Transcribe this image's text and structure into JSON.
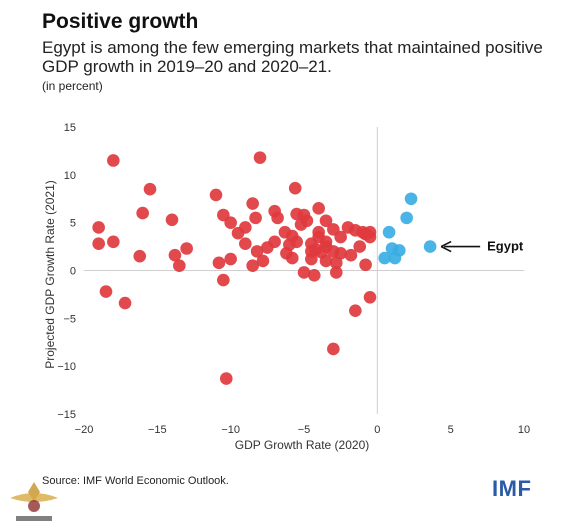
{
  "header": {
    "title": "Positive growth",
    "subtitle": "Egypt is among the few emerging markets that maintained positive GDP growth in 2019–20 and 2020–21.",
    "unit": "(in percent)"
  },
  "footer": {
    "source": "Source: IMF World Economic Outlook.",
    "brand": "IMF"
  },
  "colors": {
    "red": "#e0393e",
    "blue": "#3aaee3",
    "axis": "#cfcfcf",
    "text": "#333333"
  },
  "chart_data": {
    "type": "scatter",
    "xlabel": "GDP Growth Rate (2020)",
    "ylabel": "Projected GDP Growth Rate (2021)",
    "xlim": [
      -20,
      10
    ],
    "ylim": [
      -15,
      15
    ],
    "xticks": [
      "−20",
      "−15",
      "−10",
      "−5",
      "0",
      "5",
      "10"
    ],
    "yticks": [
      "15",
      "10",
      "5",
      "0",
      "−5",
      "−10",
      "−15"
    ],
    "annotation": {
      "label": "Egypt",
      "x": 3.6,
      "y": 2.5
    },
    "series": [
      {
        "color": "#e0393e",
        "points": [
          [
            -18.0,
            11.5
          ],
          [
            -15.5,
            8.5
          ],
          [
            -16.0,
            6.0
          ],
          [
            -19.0,
            4.5
          ],
          [
            -19.0,
            2.8
          ],
          [
            -18.0,
            3.0
          ],
          [
            -18.5,
            -2.2
          ],
          [
            -17.2,
            -3.4
          ],
          [
            -16.2,
            1.5
          ],
          [
            -13.8,
            1.6
          ],
          [
            -13.0,
            2.3
          ],
          [
            -13.5,
            0.5
          ],
          [
            -14.0,
            5.3
          ],
          [
            -11.0,
            7.9
          ],
          [
            -10.5,
            5.8
          ],
          [
            -10.0,
            5.0
          ],
          [
            -9.5,
            3.9
          ],
          [
            -9.0,
            4.5
          ],
          [
            -8.5,
            7.0
          ],
          [
            -8.0,
            11.8
          ],
          [
            -8.3,
            5.5
          ],
          [
            -10.8,
            0.8
          ],
          [
            -10.0,
            1.2
          ],
          [
            -10.5,
            -1.0
          ],
          [
            -10.3,
            -11.3
          ],
          [
            -9.0,
            2.8
          ],
          [
            -8.2,
            2.0
          ],
          [
            -7.5,
            2.4
          ],
          [
            -7.0,
            3.0
          ],
          [
            -8.5,
            0.5
          ],
          [
            -7.8,
            1.0
          ],
          [
            -7.0,
            6.2
          ],
          [
            -6.8,
            5.5
          ],
          [
            -6.3,
            4.0
          ],
          [
            -5.8,
            3.6
          ],
          [
            -6.0,
            2.7
          ],
          [
            -5.6,
            8.6
          ],
          [
            -5.5,
            5.9
          ],
          [
            -5.0,
            5.8
          ],
          [
            -5.2,
            4.8
          ],
          [
            -5.5,
            3.0
          ],
          [
            -6.2,
            1.8
          ],
          [
            -5.8,
            1.3
          ],
          [
            -4.8,
            5.2
          ],
          [
            -4.5,
            2.8
          ],
          [
            -4.2,
            2.2
          ],
          [
            -4.0,
            6.5
          ],
          [
            -4.0,
            3.5
          ],
          [
            -3.5,
            5.2
          ],
          [
            -3.0,
            4.3
          ],
          [
            -3.5,
            2.5
          ],
          [
            -3.0,
            2.0
          ],
          [
            -2.5,
            3.5
          ],
          [
            -2.0,
            4.5
          ],
          [
            -1.5,
            4.2
          ],
          [
            -1.8,
            1.6
          ],
          [
            -1.2,
            2.5
          ],
          [
            -1.0,
            4.0
          ],
          [
            -0.5,
            4.0
          ],
          [
            -0.5,
            3.5
          ],
          [
            -0.8,
            3.8
          ],
          [
            -4.5,
            1.2
          ],
          [
            -3.5,
            1.0
          ],
          [
            -2.8,
            -0.2
          ],
          [
            -4.3,
            -0.5
          ],
          [
            -5.0,
            -0.2
          ],
          [
            -3.5,
            3.0
          ],
          [
            -4.0,
            4.0
          ],
          [
            -1.5,
            -4.2
          ],
          [
            -0.5,
            -2.8
          ],
          [
            -3.0,
            -8.2
          ],
          [
            -0.8,
            0.6
          ],
          [
            -2.5,
            1.8
          ],
          [
            -4.5,
            2.0
          ],
          [
            -3.8,
            1.9
          ],
          [
            -2.8,
            0.8
          ]
        ]
      },
      {
        "color": "#3aaee3",
        "points": [
          [
            0.8,
            4.0
          ],
          [
            2.0,
            5.5
          ],
          [
            2.3,
            7.5
          ],
          [
            1.0,
            2.3
          ],
          [
            1.5,
            2.1
          ],
          [
            0.5,
            1.3
          ],
          [
            1.2,
            1.3
          ],
          [
            3.6,
            2.5
          ]
        ]
      }
    ]
  }
}
